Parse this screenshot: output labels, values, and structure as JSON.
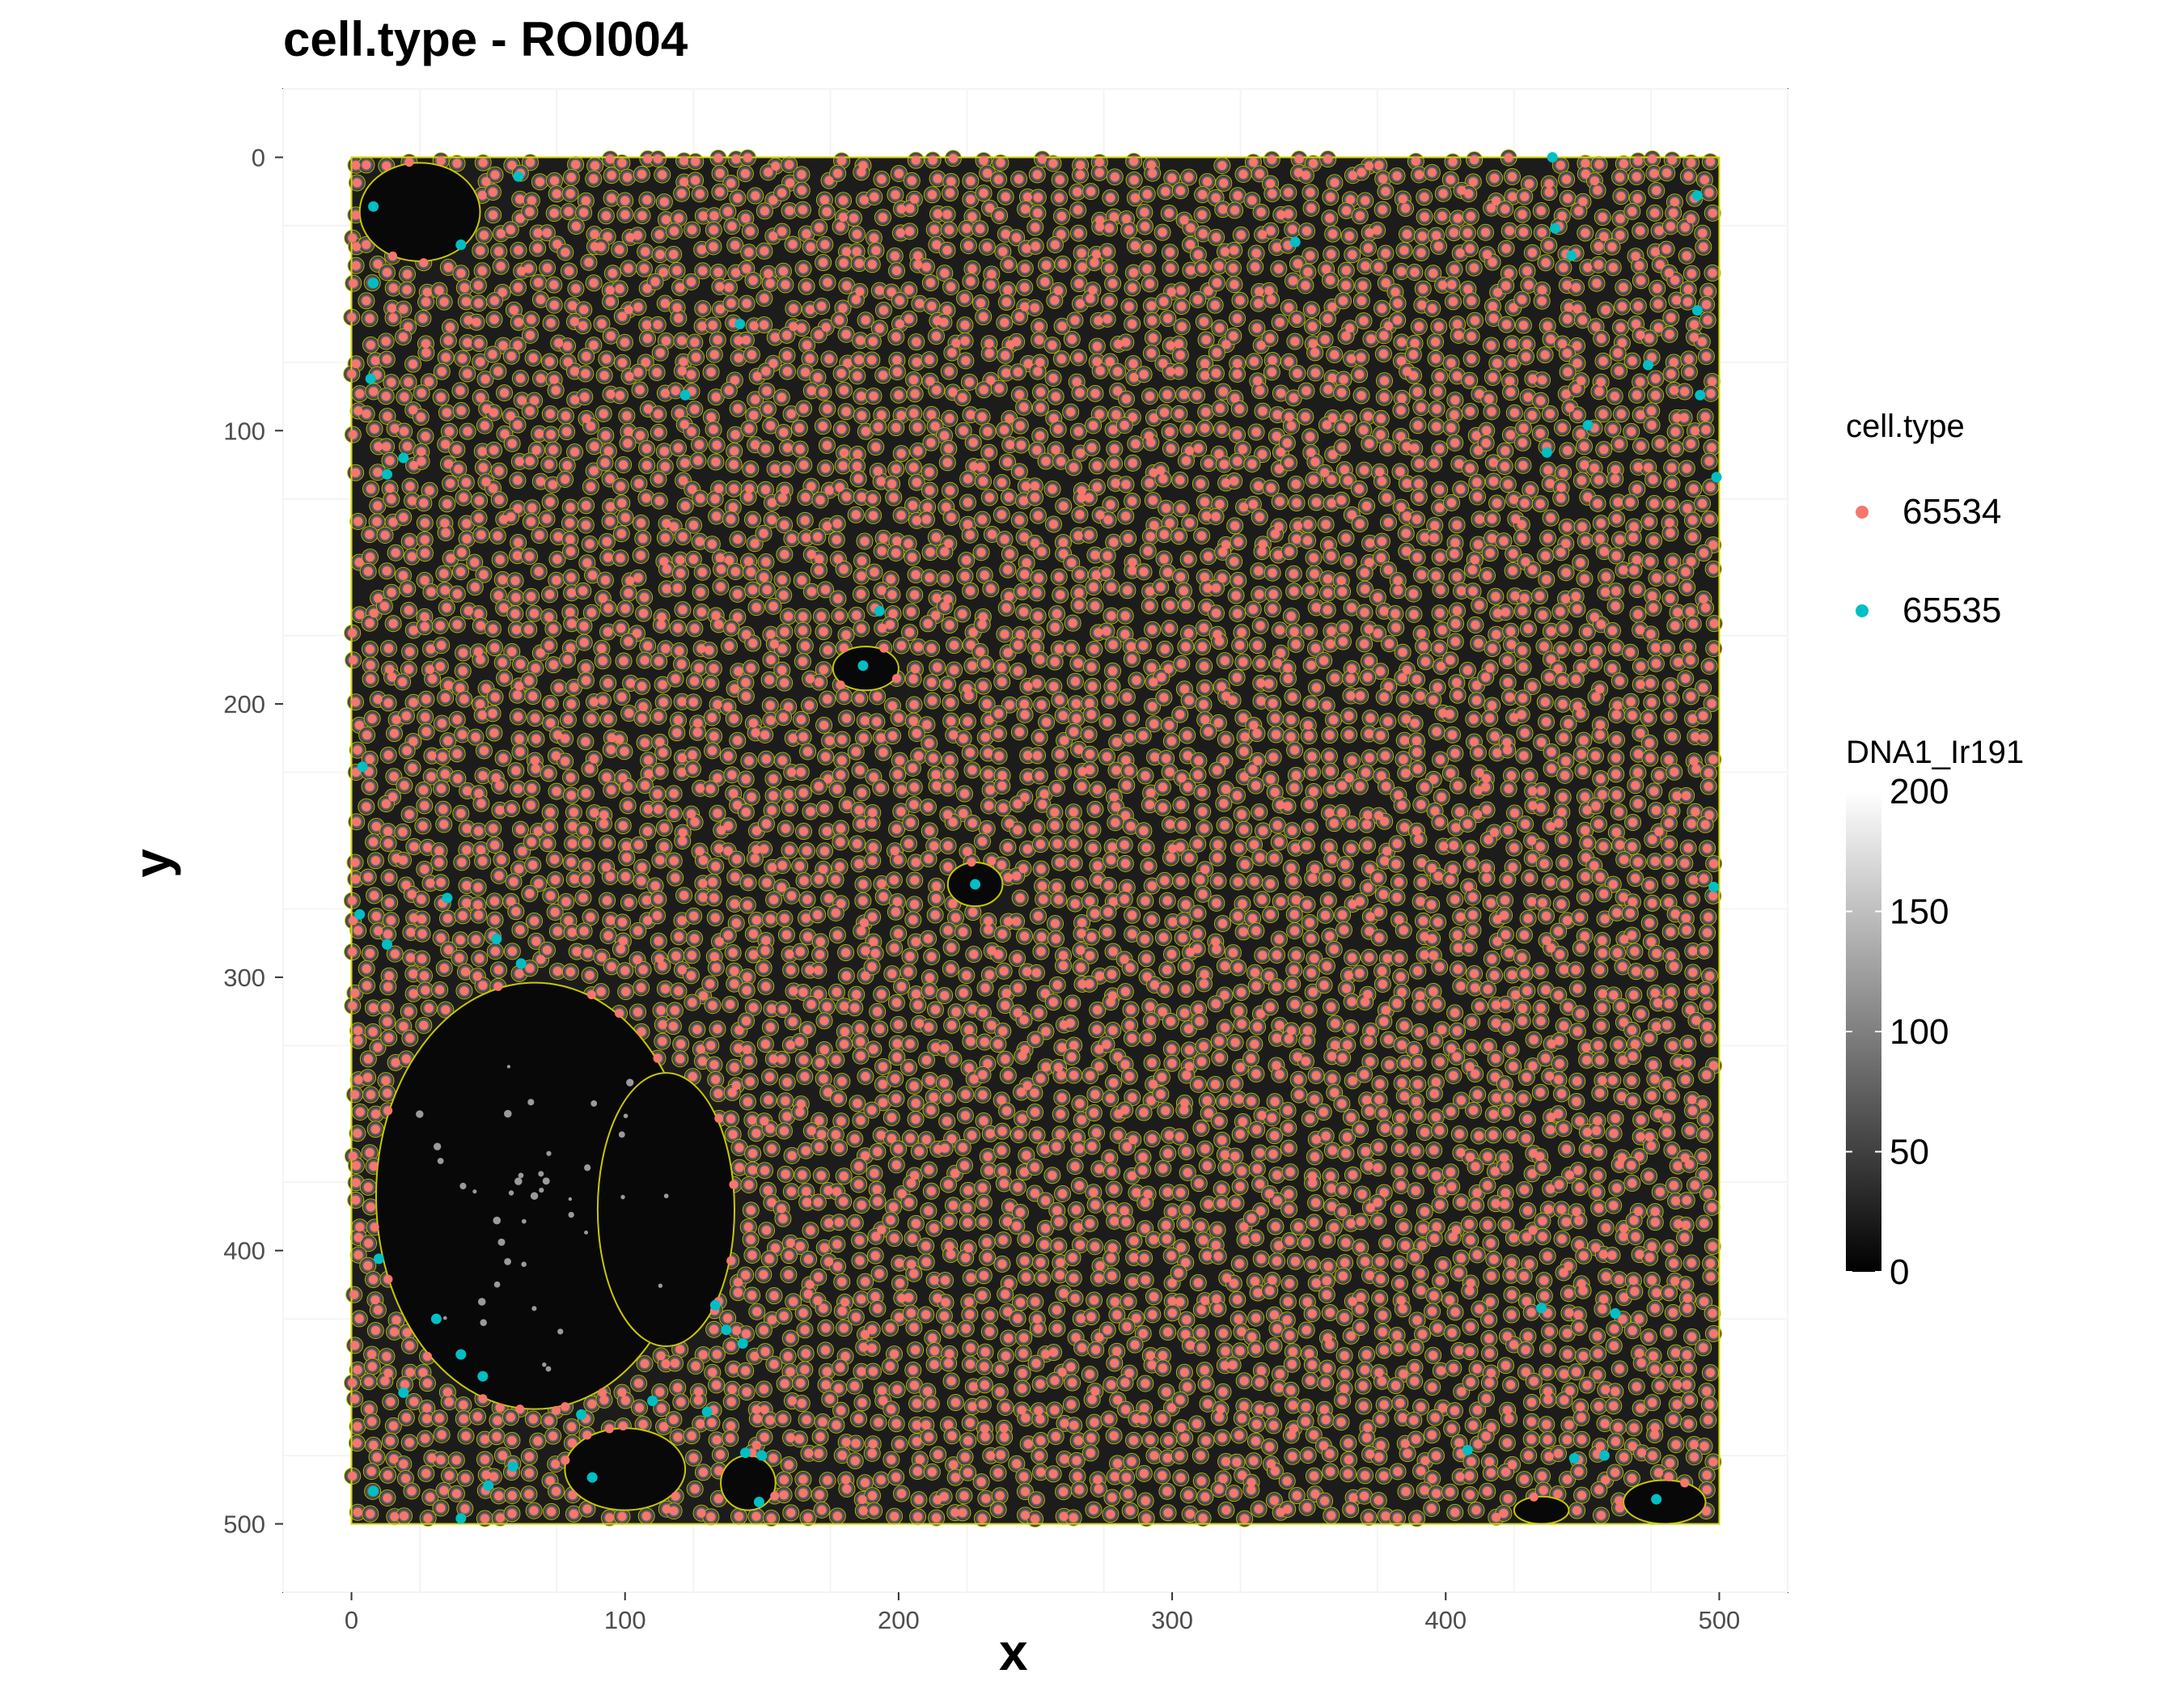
{
  "chart_data": {
    "type": "scatter",
    "title": "cell.type - ROI004",
    "xlabel": "x",
    "ylabel": "y",
    "xlim": [
      -25,
      525
    ],
    "ylim": [
      -25,
      525
    ],
    "y_reversed": true,
    "x_ticks": [
      0,
      100,
      200,
      300,
      400,
      500
    ],
    "y_ticks": [
      0,
      100,
      200,
      300,
      400,
      500
    ],
    "grid": true,
    "background": "grayscale image of DNA1_Ir191 intensity with yellow cell segmentation outlines",
    "legend_position": "right",
    "color_legend": {
      "title": "cell.type",
      "entries": [
        {
          "label": "65534",
          "color": "#F8766D"
        },
        {
          "label": "65535",
          "color": "#00BFC4"
        }
      ]
    },
    "fill_legend": {
      "title": "DNA1_Ir191",
      "range": [
        0,
        200
      ],
      "ticks": [
        0,
        50,
        100,
        150,
        200
      ],
      "colors": [
        "#000000",
        "#ffffff"
      ]
    },
    "series": [
      {
        "name": "65535",
        "color": "#00BFC4",
        "points": [
          [
            8,
            18
          ],
          [
            40,
            32
          ],
          [
            61,
            7
          ],
          [
            8,
            46
          ],
          [
            142,
            61
          ],
          [
            122,
            87
          ],
          [
            7,
            81
          ],
          [
            19,
            110
          ],
          [
            13,
            116
          ],
          [
            193,
            166
          ],
          [
            187,
            186
          ],
          [
            4,
            223
          ],
          [
            228,
            266
          ],
          [
            35,
            271
          ],
          [
            3,
            277
          ],
          [
            13,
            288
          ],
          [
            53,
            286
          ],
          [
            62,
            295
          ],
          [
            10,
            403
          ],
          [
            31,
            425
          ],
          [
            40,
            438
          ],
          [
            48,
            446
          ],
          [
            19,
            452
          ],
          [
            59,
            479
          ],
          [
            84,
            460
          ],
          [
            110,
            455
          ],
          [
            130,
            459
          ],
          [
            133,
            420
          ],
          [
            137,
            429
          ],
          [
            143,
            434
          ],
          [
            144,
            474
          ],
          [
            150,
            475
          ],
          [
            88,
            483
          ],
          [
            50,
            486
          ],
          [
            8,
            488
          ],
          [
            40,
            498
          ],
          [
            149,
            492
          ],
          [
            439,
            0
          ],
          [
            345,
            31
          ],
          [
            440,
            26
          ],
          [
            446,
            36
          ],
          [
            492,
            14
          ],
          [
            492,
            56
          ],
          [
            474,
            76
          ],
          [
            493,
            87
          ],
          [
            452,
            98
          ],
          [
            437,
            108
          ],
          [
            499,
            117
          ],
          [
            498,
            267
          ],
          [
            435,
            421
          ],
          [
            462,
            423
          ],
          [
            408,
            473
          ],
          [
            447,
            476
          ],
          [
            458,
            475
          ],
          [
            477,
            491
          ]
        ]
      }
    ]
  }
}
